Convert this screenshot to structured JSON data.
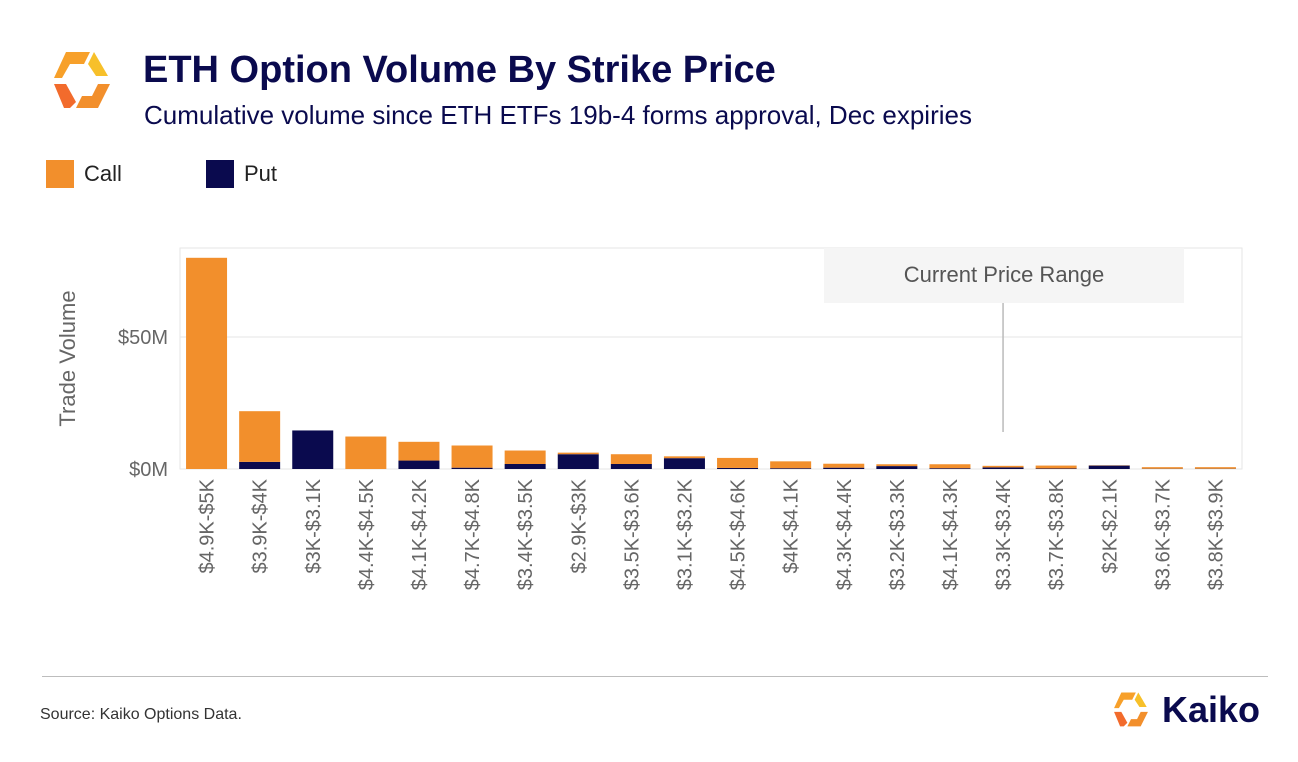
{
  "header": {
    "title": "ETH Option Volume By Strike Price",
    "subtitle": "Cumulative volume since ETH ETFs 19b-4 forms approval, Dec expiries"
  },
  "colors": {
    "call": "#f28f2c",
    "put": "#0a0a4e",
    "title": "#0a0a4e",
    "gridline": "#e6e6e6"
  },
  "chart_data": {
    "type": "bar",
    "stacked": true,
    "legend_position": "top-left",
    "grid": true,
    "title": "",
    "xlabel": "",
    "ylabel": "Trade Volume",
    "ylim": [
      -2,
      80
    ],
    "yticks": [
      {
        "value": 0,
        "label": "$0M"
      },
      {
        "value": 50,
        "label": "$50M"
      }
    ],
    "categories": [
      "$4.9K-$5K",
      "$3.9K-$4K",
      "$3K-$3.1K",
      "$4.4K-$4.5K",
      "$4.1K-$4.2K",
      "$4.7K-$4.8K",
      "$3.4K-$3.5K",
      "$2.9K-$3K",
      "$3.5K-$3.6K",
      "$3.1K-$3.2K",
      "$4.5K-$4.6K",
      "$4K-$4.1K",
      "$4.3K-$4.4K",
      "$3.2K-$3.3K",
      "$4.1K-$4.3K",
      "$3.3K-$3.4K",
      "$3.7K-$3.8K",
      "$2K-$2.1K",
      "$3.6K-$3.7K",
      "$3.8K-$3.9K"
    ],
    "series": [
      {
        "name": "Put",
        "values": [
          0,
          2.7,
          14.6,
          0,
          3.2,
          0.5,
          1.9,
          5.6,
          1.9,
          4.1,
          0.4,
          0.3,
          0.5,
          1.1,
          0.3,
          0.6,
          0.2,
          1.3,
          0.1,
          0.1
        ]
      },
      {
        "name": "Call",
        "values": [
          80,
          19.2,
          0,
          12.3,
          7.1,
          8.4,
          5.1,
          0.6,
          3.7,
          0.7,
          3.8,
          2.6,
          1.5,
          0.7,
          1.5,
          0.6,
          1.1,
          0.1,
          0.6,
          0.6
        ]
      }
    ],
    "annotation": {
      "label": "Current Price Range",
      "category": "$3.3K-$3.4K"
    }
  },
  "footer": {
    "source": "Source: Kaiko Options Data.",
    "brand": "Kaiko"
  }
}
